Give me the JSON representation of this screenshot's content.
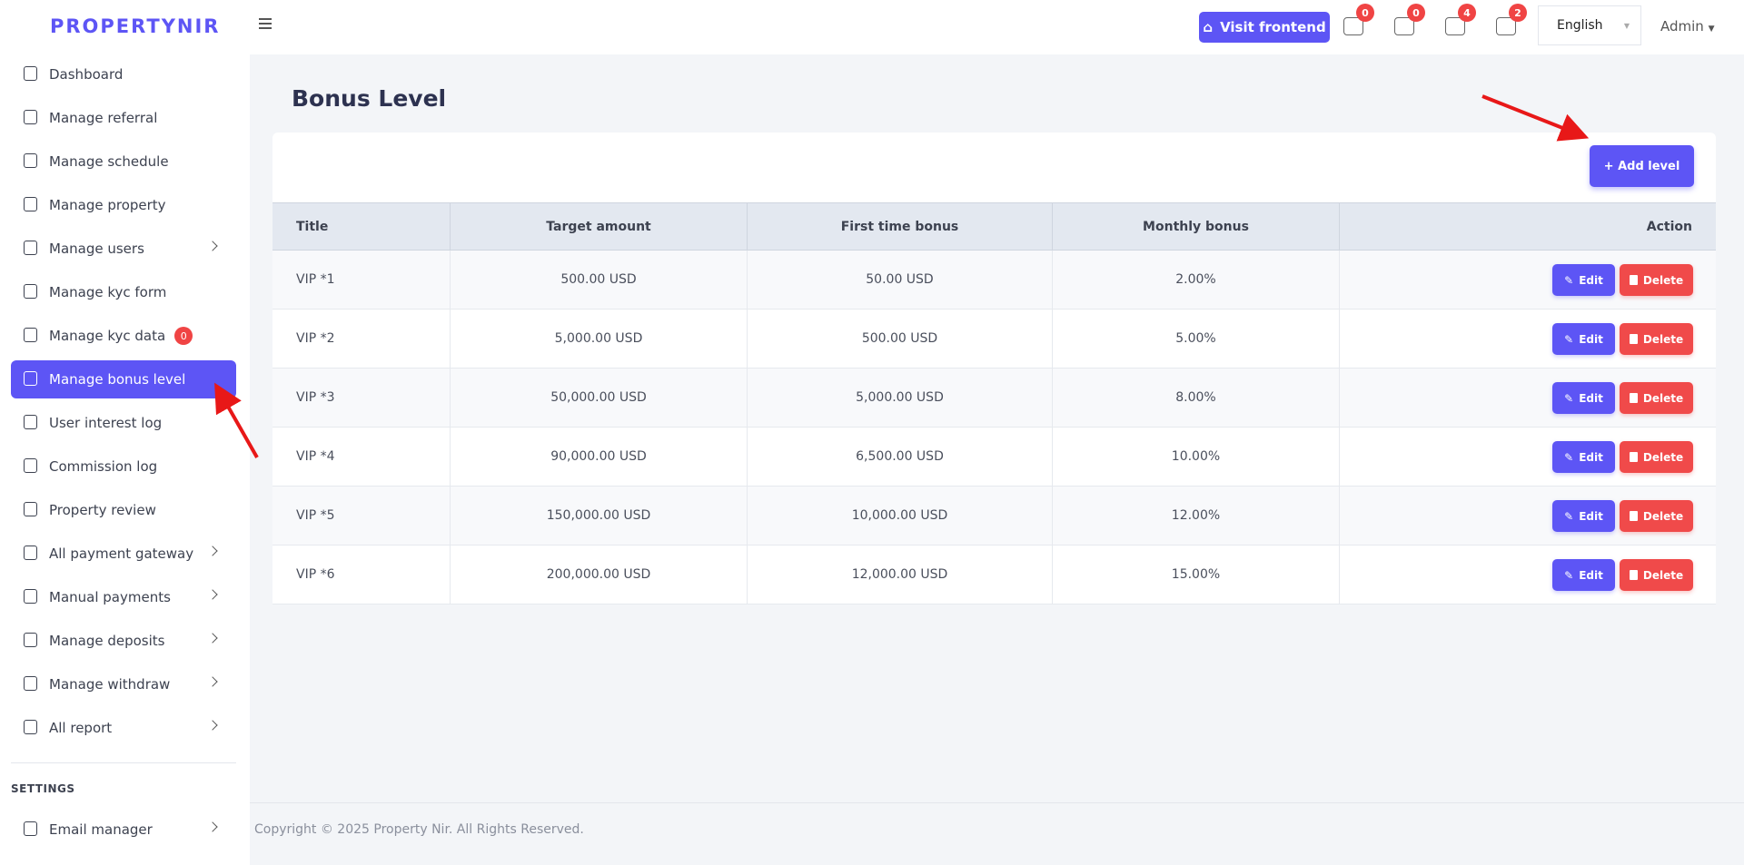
{
  "brand": "PROPERTYNIR",
  "topbar": {
    "visit": "Visit frontend",
    "badges": [
      0,
      0,
      4,
      2
    ],
    "language": "English",
    "user": "Admin"
  },
  "sidebar": {
    "items": [
      {
        "label": "Dashboard"
      },
      {
        "label": "Manage referral"
      },
      {
        "label": "Manage schedule"
      },
      {
        "label": "Manage property"
      },
      {
        "label": "Manage users",
        "arrow": true
      },
      {
        "label": "Manage kyc form"
      },
      {
        "label": "Manage kyc data",
        "badge": 0
      },
      {
        "label": "Manage bonus level",
        "active": true
      },
      {
        "label": "User interest log"
      },
      {
        "label": "Commission log"
      },
      {
        "label": "Property review"
      },
      {
        "label": "All payment gateway",
        "arrow": true
      },
      {
        "label": "Manual payments",
        "arrow": true
      },
      {
        "label": "Manage deposits",
        "arrow": true
      },
      {
        "label": "Manage withdraw",
        "arrow": true
      },
      {
        "label": "All report",
        "arrow": true
      }
    ],
    "section": "SETTINGS",
    "settings_items": [
      {
        "label": "Email manager",
        "arrow": true
      }
    ]
  },
  "page": {
    "title": "Bonus Level",
    "add_button": "+ Add level"
  },
  "table": {
    "headers": [
      "Title",
      "Target amount",
      "First time bonus",
      "Monthly bonus",
      "Action"
    ],
    "rows": [
      [
        "VIP *1",
        "500.00 USD",
        "50.00 USD",
        "2.00%"
      ],
      [
        "VIP *2",
        "5,000.00 USD",
        "500.00 USD",
        "5.00%"
      ],
      [
        "VIP *3",
        "50,000.00 USD",
        "5,000.00 USD",
        "8.00%"
      ],
      [
        "VIP *4",
        "90,000.00 USD",
        "6,500.00 USD",
        "10.00%"
      ],
      [
        "VIP *5",
        "150,000.00 USD",
        "10,000.00 USD",
        "12.00%"
      ],
      [
        "VIP *6",
        "200,000.00 USD",
        "12,000.00 USD",
        "15.00%"
      ]
    ],
    "edit": "Edit",
    "delete": "Delete"
  },
  "footer": "Copyright © 2025 Property Nir. All Rights Reserved."
}
